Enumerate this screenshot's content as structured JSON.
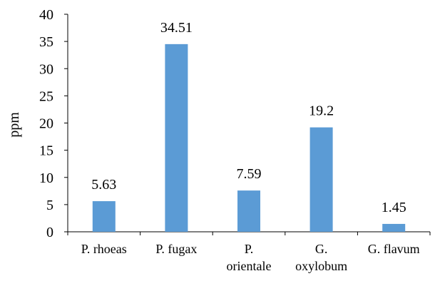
{
  "chart_data": {
    "type": "bar",
    "categories": [
      [
        "P. rhoeas"
      ],
      [
        "P. fugax"
      ],
      [
        "P.",
        "orientale"
      ],
      [
        "G.",
        "oxylobum"
      ],
      [
        "G. flavum"
      ]
    ],
    "values": [
      5.63,
      34.51,
      7.59,
      19.2,
      1.45
    ],
    "data_labels": [
      "5.63",
      "34.51",
      "7.59",
      "19.2",
      "1.45"
    ],
    "ylabel": "ppm",
    "ylim": [
      0,
      40
    ],
    "yticks": [
      0,
      5,
      10,
      15,
      20,
      25,
      30,
      35,
      40
    ],
    "grid": false,
    "legend": "none",
    "bar_color": "#5B9BD5",
    "axis_color": "#000000"
  }
}
